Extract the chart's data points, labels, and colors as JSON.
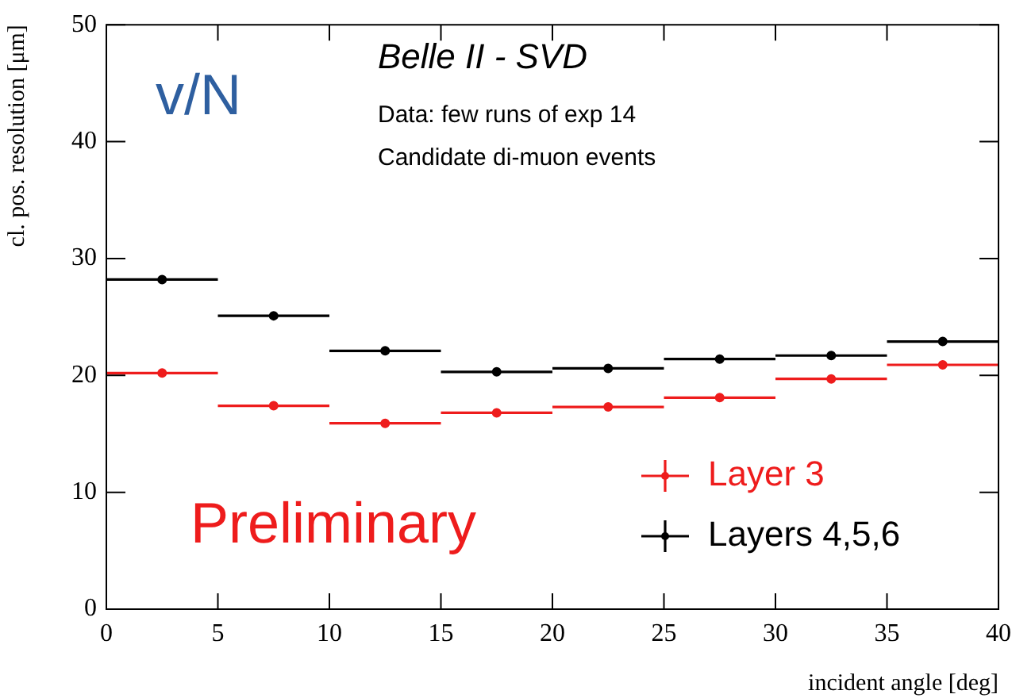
{
  "chart_data": {
    "type": "scatter",
    "xlabel": "incident angle [deg]",
    "ylabel": "cl. pos. resolution [μm]",
    "annotations": [
      "v/N",
      "Belle II - SVD",
      "Data: few runs of exp 14",
      "Candidate di-muon events",
      "Preliminary"
    ],
    "x": [
      2.5,
      7.5,
      12.5,
      17.5,
      22.5,
      27.5,
      32.5,
      37.5
    ],
    "series": [
      {
        "name": "Layer 3",
        "color": "#ee1c1c",
        "values": [
          20.2,
          17.4,
          15.9,
          16.8,
          17.3,
          18.1,
          19.7,
          20.9
        ],
        "xerrors": [
          2.5,
          2.5,
          2.5,
          2.5,
          2.5,
          2.5,
          2.5,
          2.5
        ]
      },
      {
        "name": "Layers 4,5,6",
        "color": "#000000",
        "values": [
          28.2,
          25.1,
          22.1,
          20.3,
          20.6,
          21.4,
          21.7,
          22.9
        ],
        "xerrors": [
          2.5,
          2.5,
          2.5,
          2.5,
          2.5,
          2.5,
          2.5,
          2.5
        ]
      }
    ],
    "xlim": [
      0,
      40
    ],
    "xticks": [
      0,
      5,
      10,
      15,
      20,
      25,
      30,
      35,
      40
    ],
    "ylim": [
      0,
      50
    ],
    "yticks": [
      0,
      10,
      20,
      30,
      40,
      50
    ],
    "legend": "bottom right",
    "marker": "circle"
  }
}
